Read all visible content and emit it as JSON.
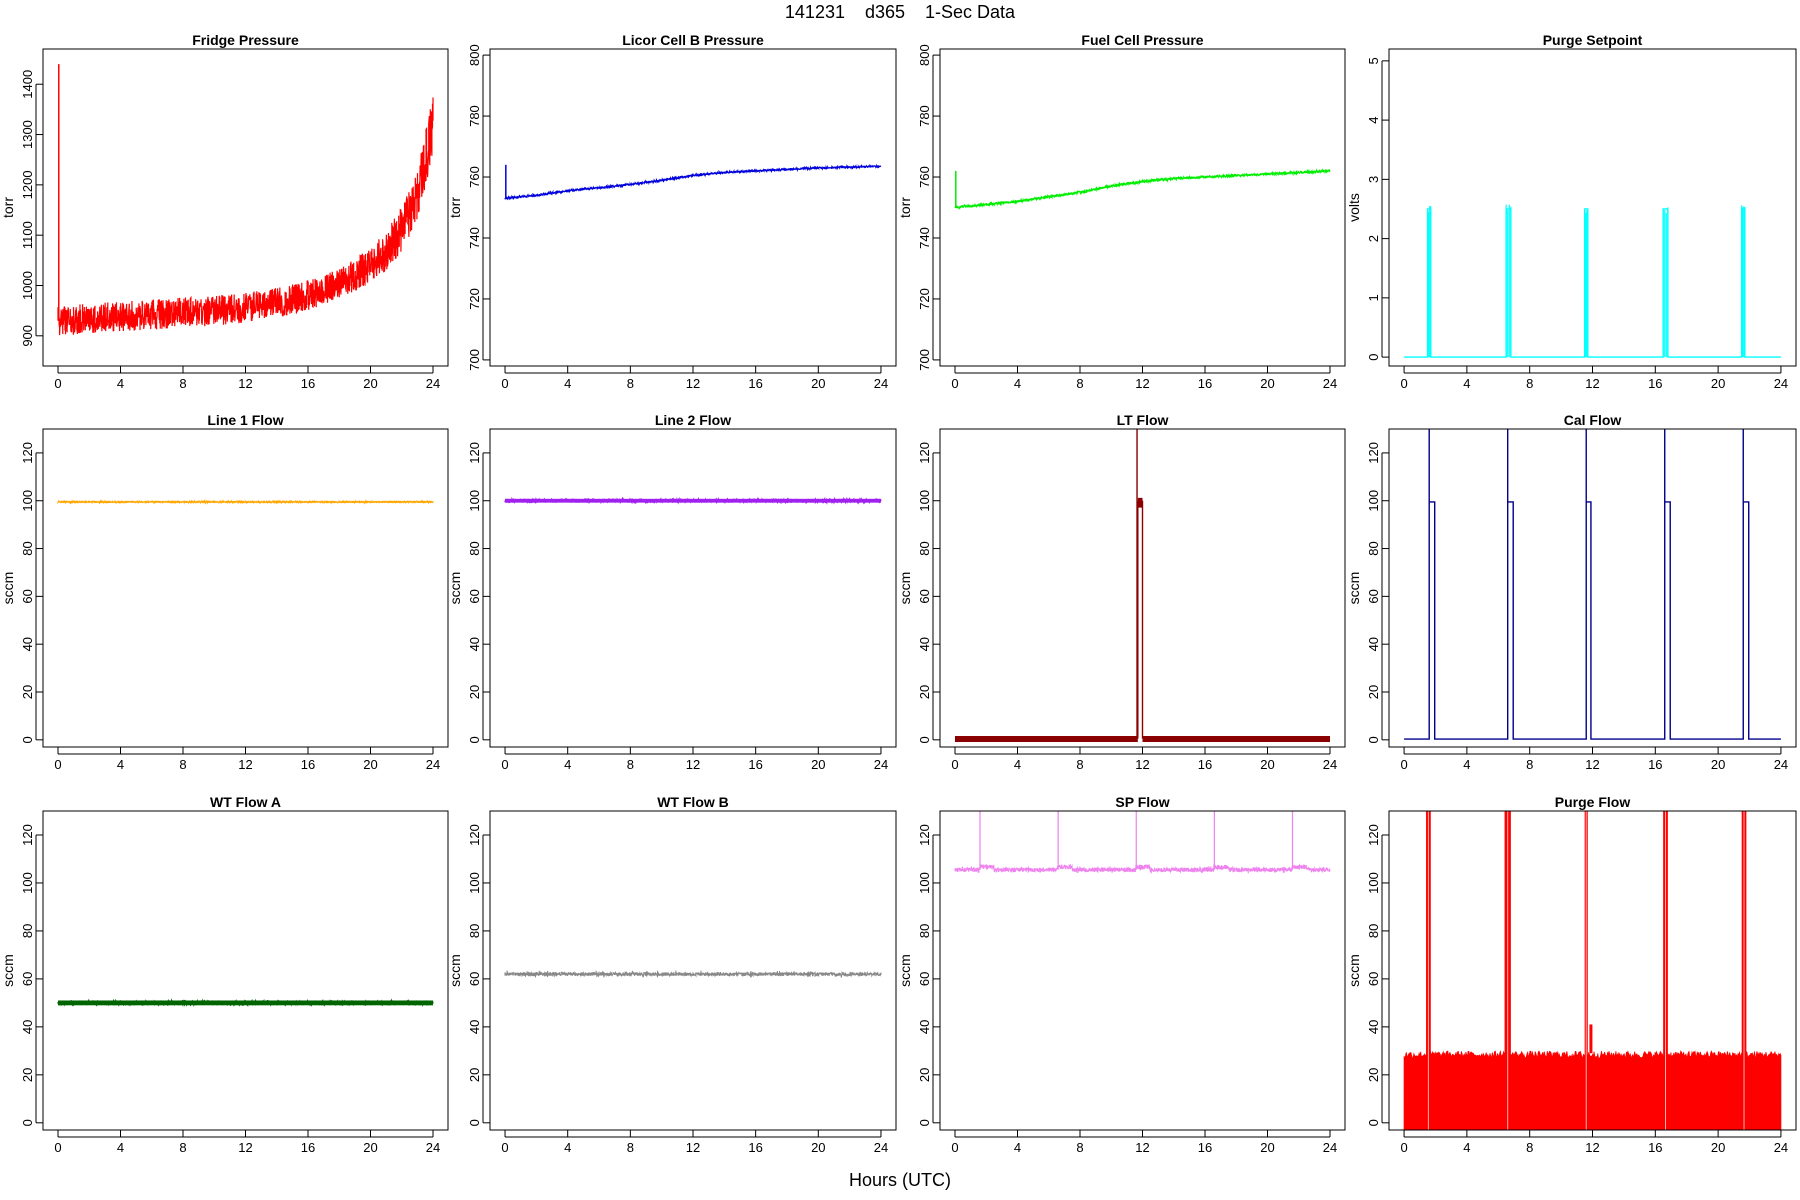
{
  "figure": {
    "title": "141231    d365    1-Sec Data",
    "xlabel": "Hours (UTC)"
  },
  "chart_data": [
    {
      "type": "line",
      "title": "Fridge Pressure",
      "xlabel": "",
      "ylabel": "torr",
      "color": "#ff0000",
      "xlim": [
        0,
        24
      ],
      "ylim": [
        840,
        1470
      ],
      "xticks": [
        0,
        4,
        8,
        12,
        16,
        20,
        24
      ],
      "yticks": [
        900,
        1000,
        1100,
        1200,
        1300,
        1400
      ],
      "series": [
        {
          "x": [
            0,
            1,
            2,
            3,
            4,
            5,
            6,
            7,
            8,
            9,
            10,
            11,
            12,
            13,
            14,
            15,
            16,
            17,
            18,
            19,
            20,
            21,
            22,
            23,
            23.5,
            24
          ],
          "y": [
            930,
            932,
            935,
            936,
            938,
            940,
            942,
            944,
            946,
            948,
            950,
            953,
            956,
            960,
            965,
            972,
            980,
            992,
            1005,
            1020,
            1040,
            1070,
            1110,
            1180,
            1250,
            1320
          ],
          "spread": [
            60,
            60,
            60,
            60,
            60,
            60,
            60,
            60,
            60,
            60,
            60,
            60,
            60,
            60,
            60,
            60,
            60,
            60,
            60,
            65,
            70,
            80,
            90,
            100,
            110,
            120
          ]
        }
      ],
      "spikes": [
        {
          "x": 0.05,
          "y": 1440
        }
      ]
    },
    {
      "type": "line",
      "title": "Licor Cell B Pressure",
      "xlabel": "",
      "ylabel": "torr",
      "color": "#0000dd",
      "xlim": [
        0,
        24
      ],
      "ylim": [
        698,
        802
      ],
      "xticks": [
        0,
        4,
        8,
        12,
        16,
        20,
        24
      ],
      "yticks": [
        700,
        720,
        740,
        760,
        780,
        800
      ],
      "series": [
        {
          "x": [
            0,
            2,
            4,
            6,
            8,
            10,
            12,
            14,
            16,
            18,
            20,
            22,
            24
          ],
          "y": [
            753,
            754,
            755.5,
            756.5,
            757.5,
            759,
            760.5,
            761.5,
            762,
            762.5,
            763,
            763.3,
            763.5
          ],
          "spread": [
            0.6
          ]
        }
      ],
      "spikes": [
        {
          "x": 0.05,
          "y": 764
        }
      ]
    },
    {
      "type": "line",
      "title": "Fuel Cell Pressure",
      "xlabel": "",
      "ylabel": "torr",
      "color": "#00ee00",
      "xlim": [
        0,
        24
      ],
      "ylim": [
        698,
        802
      ],
      "xticks": [
        0,
        4,
        8,
        12,
        16,
        20,
        24
      ],
      "yticks": [
        700,
        720,
        740,
        760,
        780,
        800
      ],
      "series": [
        {
          "x": [
            0,
            2,
            4,
            6,
            8,
            10,
            12,
            14,
            16,
            18,
            20,
            22,
            24
          ],
          "y": [
            750,
            751,
            752,
            753.5,
            755,
            757,
            758.5,
            759.5,
            760,
            760.5,
            761,
            761.5,
            762
          ],
          "spread": [
            0.8
          ]
        }
      ],
      "spikes": [
        {
          "x": 0.05,
          "y": 762
        }
      ]
    },
    {
      "type": "pulse",
      "title": "Purge Setpoint",
      "xlabel": "",
      "ylabel": "volts",
      "color": "#00ffff",
      "xlim": [
        0,
        24
      ],
      "ylim": [
        -0.15,
        5.2
      ],
      "xticks": [
        0,
        4,
        8,
        12,
        16,
        20,
        24
      ],
      "yticks": [
        0,
        1,
        2,
        3,
        4,
        5
      ],
      "base": 0,
      "pulse_value": 2.5,
      "pulses": [
        [
          1.5,
          1.7
        ],
        [
          6.5,
          6.8
        ],
        [
          11.5,
          11.7
        ],
        [
          16.5,
          16.8
        ],
        [
          21.5,
          21.7
        ]
      ]
    },
    {
      "type": "line",
      "title": "Line 1 Flow",
      "xlabel": "",
      "ylabel": "sccm",
      "color": "#ffa500",
      "xlim": [
        0,
        24
      ],
      "ylim": [
        -3,
        130
      ],
      "xticks": [
        0,
        4,
        8,
        12,
        16,
        20,
        24
      ],
      "yticks": [
        0,
        20,
        40,
        60,
        80,
        100,
        120
      ],
      "series": [
        {
          "x": [
            0,
            24
          ],
          "y": [
            99.5,
            99.5
          ],
          "spread": [
            0.4
          ]
        }
      ]
    },
    {
      "type": "line",
      "title": "Line 2 Flow",
      "xlabel": "",
      "ylabel": "sccm",
      "color": "#a020f0",
      "xlim": [
        0,
        24
      ],
      "ylim": [
        -3,
        130
      ],
      "xticks": [
        0,
        4,
        8,
        12,
        16,
        20,
        24
      ],
      "yticks": [
        0,
        20,
        40,
        60,
        80,
        100,
        120
      ],
      "series": [
        {
          "x": [
            0,
            24
          ],
          "y": [
            100,
            100
          ],
          "spread": [
            1.6
          ]
        }
      ]
    },
    {
      "type": "band",
      "title": "LT Flow",
      "xlabel": "",
      "ylabel": "sccm",
      "color": "#8b0000",
      "xlim": [
        0,
        24
      ],
      "ylim": [
        -3,
        130
      ],
      "xticks": [
        0,
        4,
        8,
        12,
        16,
        20,
        24
      ],
      "yticks": [
        0,
        20,
        40,
        60,
        80,
        100,
        120
      ],
      "base": 0.5,
      "base_spread": 2.2,
      "blocks": [
        {
          "x": [
            11.7,
            12.0
          ],
          "y": 100
        }
      ],
      "spikes": [
        {
          "x": 11.65,
          "y": 130
        }
      ]
    },
    {
      "type": "pulse",
      "title": "Cal Flow",
      "xlabel": "",
      "ylabel": "sccm",
      "color": "#00008b",
      "xlim": [
        0,
        24
      ],
      "ylim": [
        -3,
        130
      ],
      "xticks": [
        0,
        4,
        8,
        12,
        16,
        20,
        24
      ],
      "yticks": [
        0,
        20,
        40,
        60,
        80,
        100,
        120
      ],
      "base": 0.3,
      "pulse_value": 99.5,
      "pulses": [
        [
          1.6,
          1.95
        ],
        [
          6.6,
          6.95
        ],
        [
          11.6,
          11.9
        ],
        [
          16.6,
          16.95
        ],
        [
          21.6,
          21.95
        ]
      ],
      "spike_top": 130
    },
    {
      "type": "line",
      "title": "WT Flow A",
      "xlabel": "",
      "ylabel": "sccm",
      "color": "#006400",
      "xlim": [
        0,
        24
      ],
      "ylim": [
        -3,
        130
      ],
      "xticks": [
        0,
        4,
        8,
        12,
        16,
        20,
        24
      ],
      "yticks": [
        0,
        20,
        40,
        60,
        80,
        100,
        120
      ],
      "series": [
        {
          "x": [
            0,
            24
          ],
          "y": [
            50,
            50
          ],
          "spread": [
            2.0
          ]
        }
      ]
    },
    {
      "type": "noise",
      "title": "WT Flow B",
      "xlabel": "",
      "ylabel": "sccm",
      "color": "#888888",
      "xlim": [
        0,
        24
      ],
      "ylim": [
        -3,
        130
      ],
      "xticks": [
        0,
        4,
        8,
        12,
        16,
        20,
        24
      ],
      "yticks": [
        0,
        20,
        40,
        60,
        80,
        100,
        120
      ],
      "base": 62,
      "amp": 1.5,
      "spike_amp": 3
    },
    {
      "type": "noise",
      "title": "SP Flow",
      "xlabel": "",
      "ylabel": "sccm",
      "color": "#ee82ee",
      "xlim": [
        0,
        24
      ],
      "ylim": [
        -3,
        130
      ],
      "xticks": [
        0,
        4,
        8,
        12,
        16,
        20,
        24
      ],
      "yticks": [
        0,
        20,
        40,
        60,
        80,
        100,
        120
      ],
      "base": 105.5,
      "amp": 1.8,
      "spike_amp": 3,
      "bumps": [
        1.6,
        6.6,
        11.6,
        16.6,
        21.6
      ],
      "spike_top": 130
    },
    {
      "type": "band",
      "title": "Purge Flow",
      "xlabel": "",
      "ylabel": "sccm",
      "color": "#ff0000",
      "xlim": [
        0,
        24
      ],
      "ylim": [
        -3,
        130
      ],
      "xticks": [
        0,
        4,
        8,
        12,
        16,
        20,
        24
      ],
      "yticks": [
        0,
        20,
        40,
        60,
        80,
        100,
        120
      ],
      "base": -3,
      "fill_top": 29,
      "fill_jitter": 3,
      "towers": [
        [
          1.4,
          1.7
        ],
        [
          6.4,
          6.8
        ],
        [
          11.5,
          11.7
        ],
        [
          16.5,
          16.8
        ],
        [
          21.5,
          21.8
        ]
      ],
      "tower_top": 130
    }
  ]
}
